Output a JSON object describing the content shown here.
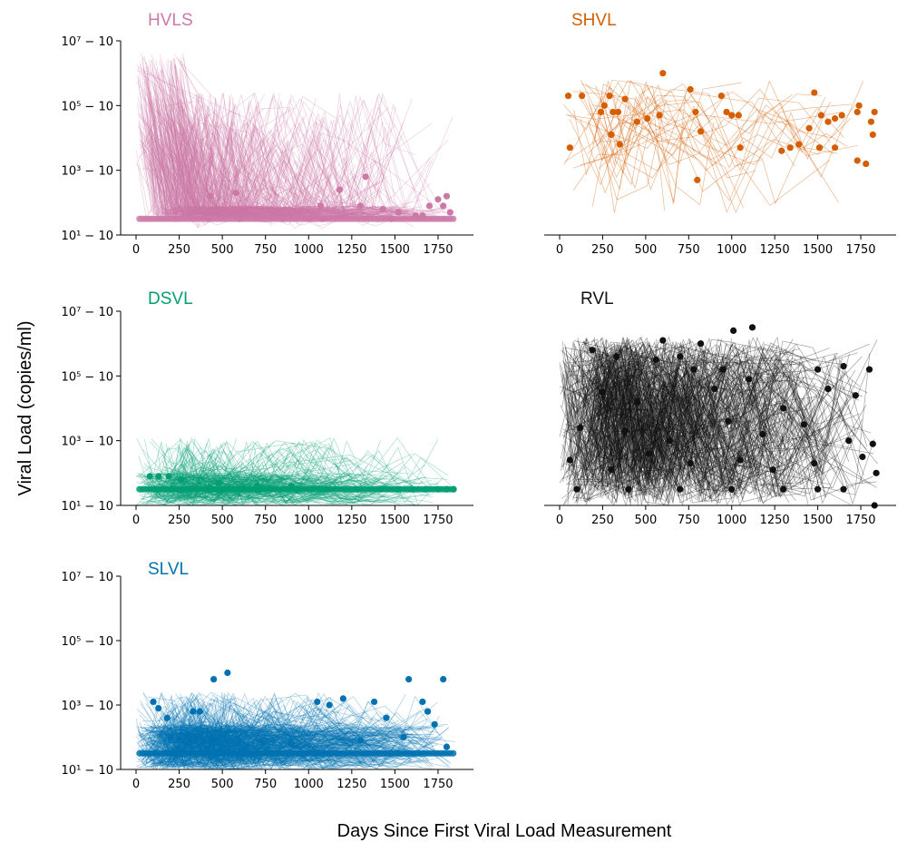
{
  "figure": {
    "ylabel": "Viral Load (copies/ml)",
    "xlabel": "Days Since First Viral Load Measurement"
  },
  "chart_data": [
    {
      "type": "line",
      "title": "HVLS",
      "color": "#cc79a7",
      "y_scale": "log10",
      "ylim": [
        1,
        7
      ],
      "yticks": [
        1,
        3,
        5,
        7
      ],
      "yticklabels": [
        "10¹ − 10",
        "10³ − 10",
        "10⁵ − 10",
        "10⁷ − 10"
      ],
      "xlim": [
        0,
        1850
      ],
      "xticks": [
        0,
        250,
        500,
        750,
        1000,
        1250,
        1500,
        1750
      ],
      "show_yaxis": true,
      "point_estimates": [
        {
          "x": 420,
          "y": 1.5
        },
        {
          "x": 600,
          "y": 1.5
        },
        {
          "x": 850,
          "y": 1.5
        },
        {
          "x": 1000,
          "y": 1.5
        },
        {
          "x": 1080,
          "y": 1.5
        },
        {
          "x": 430,
          "y": 2.2
        },
        {
          "x": 580,
          "y": 2.3
        },
        {
          "x": 1070,
          "y": 1.9
        },
        {
          "x": 1180,
          "y": 2.4
        },
        {
          "x": 1300,
          "y": 1.9
        },
        {
          "x": 1330,
          "y": 2.8
        },
        {
          "x": 1430,
          "y": 1.8
        },
        {
          "x": 1480,
          "y": 1.5
        },
        {
          "x": 1520,
          "y": 1.7
        },
        {
          "x": 1620,
          "y": 1.6
        },
        {
          "x": 1660,
          "y": 1.6
        },
        {
          "x": 1700,
          "y": 1.9
        },
        {
          "x": 1750,
          "y": 2.1
        },
        {
          "x": 1780,
          "y": 1.9
        },
        {
          "x": 1800,
          "y": 2.2
        },
        {
          "x": 1820,
          "y": 1.7
        }
      ],
      "baseline_y": 1.5
    },
    {
      "type": "line",
      "title": "SHVL",
      "color": "#d55e00",
      "y_scale": "log10",
      "ylim": [
        1,
        7
      ],
      "yticks": [
        1,
        3,
        5,
        7
      ],
      "yticklabels": [
        "10¹ − 10",
        "10³ − 10",
        "10⁵ − 10",
        "10⁷ − 10"
      ],
      "xlim": [
        0,
        1850
      ],
      "xticks": [
        0,
        250,
        500,
        750,
        1000,
        1250,
        1500,
        1750
      ],
      "show_yaxis": false,
      "point_estimates": [
        {
          "x": 50,
          "y": 5.3
        },
        {
          "x": 130,
          "y": 5.3
        },
        {
          "x": 60,
          "y": 3.7
        },
        {
          "x": 240,
          "y": 4.8
        },
        {
          "x": 260,
          "y": 5.0
        },
        {
          "x": 290,
          "y": 5.3
        },
        {
          "x": 310,
          "y": 4.8
        },
        {
          "x": 340,
          "y": 4.8
        },
        {
          "x": 380,
          "y": 5.2
        },
        {
          "x": 300,
          "y": 4.1
        },
        {
          "x": 350,
          "y": 3.8
        },
        {
          "x": 450,
          "y": 4.5
        },
        {
          "x": 510,
          "y": 4.6
        },
        {
          "x": 580,
          "y": 4.7
        },
        {
          "x": 600,
          "y": 6.0
        },
        {
          "x": 760,
          "y": 5.5
        },
        {
          "x": 790,
          "y": 4.8
        },
        {
          "x": 820,
          "y": 4.2
        },
        {
          "x": 800,
          "y": 2.7
        },
        {
          "x": 940,
          "y": 5.3
        },
        {
          "x": 970,
          "y": 4.8
        },
        {
          "x": 1000,
          "y": 4.7
        },
        {
          "x": 1040,
          "y": 4.7
        },
        {
          "x": 1050,
          "y": 3.7
        },
        {
          "x": 1290,
          "y": 3.6
        },
        {
          "x": 1340,
          "y": 3.7
        },
        {
          "x": 1390,
          "y": 3.8
        },
        {
          "x": 1450,
          "y": 4.3
        },
        {
          "x": 1480,
          "y": 5.4
        },
        {
          "x": 1520,
          "y": 4.7
        },
        {
          "x": 1510,
          "y": 3.7
        },
        {
          "x": 1560,
          "y": 4.5
        },
        {
          "x": 1600,
          "y": 4.6
        },
        {
          "x": 1640,
          "y": 4.7
        },
        {
          "x": 1600,
          "y": 3.7
        },
        {
          "x": 1730,
          "y": 4.8
        },
        {
          "x": 1740,
          "y": 5.0
        },
        {
          "x": 1730,
          "y": 3.3
        },
        {
          "x": 1780,
          "y": 3.2
        },
        {
          "x": 1810,
          "y": 4.5
        },
        {
          "x": 1830,
          "y": 4.8
        },
        {
          "x": 1820,
          "y": 4.1
        }
      ],
      "baseline_y": null
    },
    {
      "type": "line",
      "title": "DSVL",
      "color": "#009e73",
      "y_scale": "log10",
      "ylim": [
        1,
        7
      ],
      "yticks": [
        1,
        3,
        5,
        7
      ],
      "yticklabels": [
        "10¹ − 10",
        "10³ − 10",
        "10⁵ − 10",
        "10⁷ − 10"
      ],
      "xlim": [
        0,
        1850
      ],
      "xticks": [
        0,
        250,
        500,
        750,
        1000,
        1250,
        1500,
        1750
      ],
      "show_yaxis": true,
      "point_estimates": [
        {
          "x": 80,
          "y": 1.9
        },
        {
          "x": 130,
          "y": 1.9
        },
        {
          "x": 190,
          "y": 1.9
        },
        {
          "x": 260,
          "y": 1.8
        },
        {
          "x": 480,
          "y": 1.7
        },
        {
          "x": 700,
          "y": 1.6
        },
        {
          "x": 900,
          "y": 1.6
        },
        {
          "x": 1100,
          "y": 1.5
        },
        {
          "x": 1280,
          "y": 1.5
        },
        {
          "x": 1420,
          "y": 1.5
        },
        {
          "x": 1520,
          "y": 1.5
        },
        {
          "x": 1600,
          "y": 1.5
        },
        {
          "x": 1680,
          "y": 1.5
        },
        {
          "x": 1750,
          "y": 1.5
        },
        {
          "x": 1800,
          "y": 1.5
        },
        {
          "x": 1840,
          "y": 1.5
        }
      ],
      "baseline_y": 1.5
    },
    {
      "type": "line",
      "title": "RVL",
      "color": "#111111",
      "y_scale": "log10",
      "ylim": [
        1,
        7
      ],
      "yticks": [
        1,
        3,
        5,
        7
      ],
      "yticklabels": [
        "10¹ − 10",
        "10³ − 10",
        "10⁵ − 10",
        "10⁷ − 10"
      ],
      "xlim": [
        0,
        1850
      ],
      "xticks": [
        0,
        250,
        500,
        750,
        1000,
        1250,
        1500,
        1750
      ],
      "show_yaxis": false,
      "point_estimates": [
        {
          "x": 1010,
          "y": 6.4
        },
        {
          "x": 1120,
          "y": 6.5
        },
        {
          "x": 600,
          "y": 6.1
        },
        {
          "x": 820,
          "y": 6.0
        },
        {
          "x": 190,
          "y": 5.8
        },
        {
          "x": 330,
          "y": 5.6
        },
        {
          "x": 560,
          "y": 5.5
        },
        {
          "x": 700,
          "y": 5.6
        },
        {
          "x": 780,
          "y": 5.2
        },
        {
          "x": 950,
          "y": 5.2
        },
        {
          "x": 1100,
          "y": 4.9
        },
        {
          "x": 1500,
          "y": 5.2
        },
        {
          "x": 1650,
          "y": 5.3
        },
        {
          "x": 1800,
          "y": 5.2
        },
        {
          "x": 250,
          "y": 4.5
        },
        {
          "x": 450,
          "y": 4.2
        },
        {
          "x": 900,
          "y": 4.6
        },
        {
          "x": 1300,
          "y": 4.0
        },
        {
          "x": 1560,
          "y": 4.6
        },
        {
          "x": 1720,
          "y": 4.4
        },
        {
          "x": 120,
          "y": 3.4
        },
        {
          "x": 380,
          "y": 3.3
        },
        {
          "x": 640,
          "y": 3.0
        },
        {
          "x": 980,
          "y": 3.6
        },
        {
          "x": 1180,
          "y": 3.2
        },
        {
          "x": 1420,
          "y": 3.5
        },
        {
          "x": 1680,
          "y": 3.0
        },
        {
          "x": 1820,
          "y": 2.9
        },
        {
          "x": 60,
          "y": 2.4
        },
        {
          "x": 300,
          "y": 2.1
        },
        {
          "x": 520,
          "y": 2.6
        },
        {
          "x": 760,
          "y": 2.3
        },
        {
          "x": 1050,
          "y": 2.4
        },
        {
          "x": 1240,
          "y": 2.1
        },
        {
          "x": 1480,
          "y": 2.3
        },
        {
          "x": 1760,
          "y": 2.5
        },
        {
          "x": 1840,
          "y": 2.0
        },
        {
          "x": 100,
          "y": 1.5
        },
        {
          "x": 400,
          "y": 1.5
        },
        {
          "x": 700,
          "y": 1.5
        },
        {
          "x": 1000,
          "y": 1.5
        },
        {
          "x": 1300,
          "y": 1.5
        },
        {
          "x": 1500,
          "y": 1.5
        },
        {
          "x": 1650,
          "y": 1.5
        },
        {
          "x": 1830,
          "y": 1.0
        }
      ],
      "baseline_y": null
    },
    {
      "type": "line",
      "title": "SLVL",
      "color": "#0072b2",
      "y_scale": "log10",
      "ylim": [
        1,
        7
      ],
      "yticks": [
        1,
        3,
        5,
        7
      ],
      "yticklabels": [
        "10¹ − 10",
        "10³ − 10",
        "10⁵ − 10",
        "10⁷ − 10"
      ],
      "xlim": [
        0,
        1850
      ],
      "xticks": [
        0,
        250,
        500,
        750,
        1000,
        1250,
        1500,
        1750
      ],
      "show_yaxis": true,
      "point_estimates": [
        {
          "x": 450,
          "y": 3.8
        },
        {
          "x": 530,
          "y": 4.0
        },
        {
          "x": 1580,
          "y": 3.8
        },
        {
          "x": 1780,
          "y": 3.8
        },
        {
          "x": 100,
          "y": 3.1
        },
        {
          "x": 130,
          "y": 2.9
        },
        {
          "x": 180,
          "y": 2.6
        },
        {
          "x": 330,
          "y": 2.8
        },
        {
          "x": 370,
          "y": 2.8
        },
        {
          "x": 1050,
          "y": 3.1
        },
        {
          "x": 1120,
          "y": 3.0
        },
        {
          "x": 1200,
          "y": 3.2
        },
        {
          "x": 1380,
          "y": 3.1
        },
        {
          "x": 1450,
          "y": 2.6
        },
        {
          "x": 1660,
          "y": 3.1
        },
        {
          "x": 1690,
          "y": 2.8
        },
        {
          "x": 1730,
          "y": 2.4
        },
        {
          "x": 200,
          "y": 2.0
        },
        {
          "x": 600,
          "y": 1.9
        },
        {
          "x": 900,
          "y": 1.8
        },
        {
          "x": 1300,
          "y": 1.9
        },
        {
          "x": 1550,
          "y": 2.0
        },
        {
          "x": 1800,
          "y": 1.7
        }
      ],
      "baseline_y": 1.5
    }
  ]
}
